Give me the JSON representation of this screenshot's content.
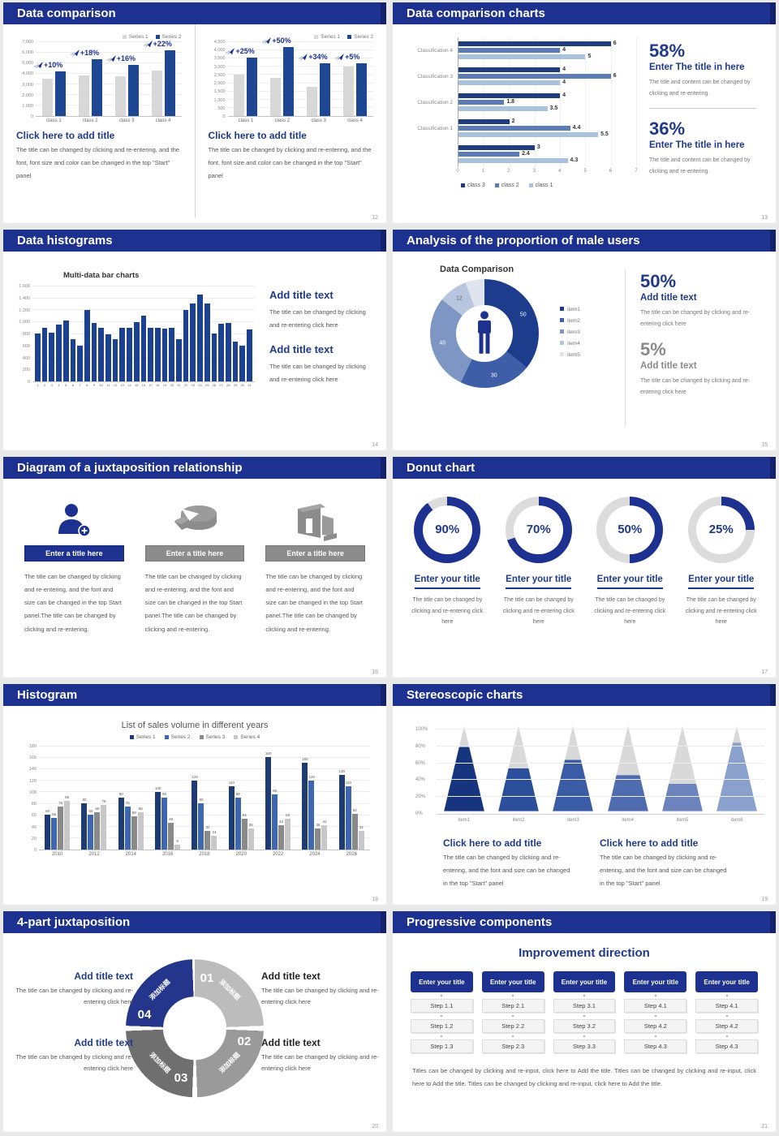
{
  "colors": {
    "header_bar": "#1d3190",
    "header_cap": "#13226b",
    "navy_text": "#1f3a8a",
    "bar_blue": "#1d4693",
    "bar_gray": "#d8d8d8",
    "hbar_series": [
      "#1e3c7e",
      "#5a7db8",
      "#a9c2de"
    ],
    "sales_series": [
      "#1f3b73",
      "#3f66b0",
      "#8a8a8a",
      "#c8c8c8"
    ],
    "donut_slices": [
      "#1e3c8c",
      "#3f5ea8",
      "#7d96c4",
      "#b7c6de",
      "#dfe4ee"
    ],
    "gauge_blue": "#1d3190",
    "gauge_track": "#dcdcdc",
    "cone_fills": [
      "#17357f",
      "#2c4f9b",
      "#3a5ca6",
      "#4f6cb0",
      "#6c84bd",
      "#8aa0cd"
    ],
    "cone_track": "#d9d9d9",
    "ring_segments": [
      "#bcbcbc",
      "#9a9a9a",
      "#6f6f6f",
      "#24358c"
    ]
  },
  "slides": {
    "s1": {
      "title": "Data comparison",
      "page": "12",
      "left_heading": "Click here to add title",
      "left_body": "The title can be changed by clicking and re-entering, and the font, font size and color can be changed in the top \"Start\" panel",
      "right_heading": "Click here to add title",
      "right_body": "The title can be changed by clicking and re-entering, and the font, font size and color can be changed in the top \"Start\" panel"
    },
    "s2": {
      "title": "Data comparison charts",
      "page": "13",
      "stat1_value": "58%",
      "stat1_heading": "Enter The title in here",
      "stat1_body": "The title and content can be changed by clicking and re-entering.",
      "stat2_value": "36%",
      "stat2_heading": "Enter The title in here",
      "stat2_body": "The title and content can be changed by clicking and re-entering."
    },
    "s3": {
      "title": "Data histograms",
      "page": "14",
      "block1_heading": "Add title text",
      "block1_body": "The title can be changed by clicking and re-entering click here",
      "block2_heading": "Add title text",
      "block2_body": "The title can be changed by clicking and re-entering click here"
    },
    "s4": {
      "title": "Analysis of the proportion of male users",
      "page": "15",
      "stat1_value": "50%",
      "stat1_heading": "Add title text",
      "stat1_body": "The title can be changed by clicking and re-entering click here",
      "stat2_value": "5%",
      "stat2_heading": "Add title text",
      "stat2_body": "The title can be changed by clicking and re-entering click here"
    },
    "s5": {
      "title": "Diagram of a juxtaposition relationship",
      "page": "16",
      "banner": "Enter a title here",
      "body": "The title can be changed by clicking and re-entering, and the font and size can be changed in the top Start panel.The title can be changed by clicking and re-entering."
    },
    "s6": {
      "title": "Donut chart",
      "page": "17",
      "item_heading": "Enter your title",
      "item_body": "The title can be changed by clicking and re-entering click here"
    },
    "s7": {
      "title": "Histogram",
      "page": "18"
    },
    "s8": {
      "title": "Stereoscopic charts",
      "page": "19",
      "block_heading": "Click here to add title",
      "block_body": "The title can be changed by clicking and re-entering, and the font and size can be changed in the top \"Start\" panel"
    },
    "s9": {
      "title": "4-part juxtaposition",
      "page": "20",
      "segments": [
        {
          "num": "01",
          "label": "添加标题"
        },
        {
          "num": "02",
          "label": "添加标题"
        },
        {
          "num": "03",
          "label": "添加标题"
        },
        {
          "num": "04",
          "label": "添加标题"
        }
      ],
      "blocks": [
        {
          "heading": "Add title text",
          "body": "The title can be changed by clicking and re-entering click here"
        },
        {
          "heading": "Add title text",
          "body": "The title can be changed by clicking and re-entering click here"
        },
        {
          "heading": "Add title text",
          "body": "The title can be changed by clicking and re-entering click here"
        },
        {
          "heading": "Add title text",
          "body": "The title can be changed by clicking and re-entering click here"
        }
      ]
    },
    "s10": {
      "title": "Progressive components",
      "page": "21",
      "heading": "Improvement direction",
      "columns": [
        {
          "header": "Enter your title",
          "steps": [
            "Step 1.1",
            "Step 1.2",
            "Step 1.3"
          ]
        },
        {
          "header": "Enter your title",
          "steps": [
            "Step 2.1",
            "Step 2.2",
            "Step 2.3"
          ]
        },
        {
          "header": "Enter your title",
          "steps": [
            "Step 3.1",
            "Step 3.2",
            "Step 3.3"
          ]
        },
        {
          "header": "Enter your title",
          "steps": [
            "Step 4.1",
            "Step 4.2",
            "Step 4.3"
          ]
        },
        {
          "header": "Enter your title",
          "steps": [
            "Step 4.1",
            "Step 4.2",
            "Step 4.3"
          ]
        }
      ],
      "footer": "Titles can be changed by clicking and re-input, click here to Add the title. Titles can be changed by clicking and re-input, click here to Add the title. Titles can be changed by clicking and re-input, click here to Add the title."
    }
  },
  "chart_data": [
    {
      "id": "comparison-left",
      "type": "bar",
      "categories": [
        "class 1",
        "class 2",
        "class 3",
        "class 4"
      ],
      "series": [
        {
          "name": "Series 1",
          "values": [
            3500,
            3800,
            3700,
            4300
          ]
        },
        {
          "name": "Series 2",
          "values": [
            4200,
            5300,
            4800,
            6200
          ]
        }
      ],
      "growth_labels": [
        "+10%",
        "+18%",
        "+16%",
        "+22%"
      ],
      "ylim": [
        0,
        7000
      ],
      "ystep": 1000
    },
    {
      "id": "comparison-right",
      "type": "bar",
      "categories": [
        "class 1",
        "class 2",
        "class 3",
        "class 4"
      ],
      "series": [
        {
          "name": "Series 1",
          "values": [
            2500,
            2300,
            1750,
            3000
          ]
        },
        {
          "name": "Series 2",
          "values": [
            3500,
            4150,
            3200,
            3200
          ]
        }
      ],
      "growth_labels": [
        "+25%",
        "+50%",
        "+34%",
        "+5%"
      ],
      "ylim": [
        0,
        4500
      ],
      "ystep": 500
    },
    {
      "id": "classification-hbar",
      "type": "bar",
      "orientation": "horizontal",
      "categories": [
        "Classification 4",
        "Classification 3",
        "Classification 2",
        "Classification 1",
        ""
      ],
      "series": [
        {
          "name": "class 3",
          "values": [
            6,
            4,
            4,
            2,
            3
          ]
        },
        {
          "name": "class 2",
          "values": [
            4,
            6,
            1.8,
            4.4,
            2.4
          ]
        },
        {
          "name": "class 1",
          "values": [
            5,
            4,
            3.5,
            5.5,
            4.3
          ]
        }
      ],
      "xlim": [
        0,
        7
      ],
      "legend_position": "bottom"
    },
    {
      "id": "multi-histogram",
      "type": "bar",
      "title": "Multi-data bar charts",
      "categories": [
        "1",
        "2",
        "3",
        "4",
        "5",
        "6",
        "7",
        "8",
        "9",
        "10",
        "11",
        "12",
        "13",
        "14",
        "15",
        "16",
        "17",
        "18",
        "19",
        "20",
        "21",
        "22",
        "23",
        "24",
        "25",
        "26",
        "27",
        "28",
        "29",
        "30",
        "31"
      ],
      "values": [
        800,
        900,
        810,
        950,
        1020,
        700,
        600,
        1200,
        980,
        890,
        780,
        700,
        890,
        890,
        990,
        1100,
        900,
        900,
        880,
        900,
        700,
        1200,
        1300,
        1450,
        1300,
        800,
        960,
        970,
        660,
        600,
        870
      ],
      "ylim": [
        0,
        1600
      ],
      "ystep": 200
    },
    {
      "id": "male-donut",
      "type": "pie",
      "title": "Data Comparison",
      "labels": [
        "item1",
        "item2",
        "item3",
        "item4",
        "item5"
      ],
      "values": [
        50,
        30,
        40,
        12,
        8
      ],
      "shown_labels": [
        "50",
        "30",
        "40",
        "12"
      ]
    },
    {
      "id": "donut-gauges",
      "type": "pie",
      "values": [
        90,
        70,
        50,
        25
      ],
      "labels": [
        "90%",
        "70%",
        "50%",
        "25%"
      ]
    },
    {
      "id": "sales-histogram",
      "type": "bar",
      "title": "List of sales volume in different years",
      "categories": [
        "2010",
        "2012",
        "2014",
        "2016",
        "2018",
        "2020",
        "2022",
        "2024",
        "2026"
      ],
      "series": [
        {
          "name": "Series 1",
          "values": [
            60,
            80,
            90,
            100,
            120,
            110,
            160,
            150,
            130
          ]
        },
        {
          "name": "Series 2",
          "values": [
            55,
            60,
            75,
            90,
            80,
            90,
            96,
            120,
            110
          ]
        },
        {
          "name": "Series 3",
          "values": [
            75,
            65,
            58,
            46,
            32,
            54,
            42,
            36,
            62
          ]
        },
        {
          "name": "Series 4",
          "values": [
            85,
            78,
            65,
            9,
            24,
            36,
            53,
            42,
            32
          ]
        }
      ],
      "ylim": [
        0,
        180
      ],
      "ystep": 20
    },
    {
      "id": "cone-chart",
      "type": "bar",
      "variant": "cone",
      "categories": [
        "item1",
        "item2",
        "item3",
        "item4",
        "item5",
        "item6"
      ],
      "values": [
        75,
        50,
        60,
        42,
        32,
        80
      ],
      "unit": "%",
      "ylim": [
        0,
        100
      ],
      "ystep": 20
    }
  ]
}
